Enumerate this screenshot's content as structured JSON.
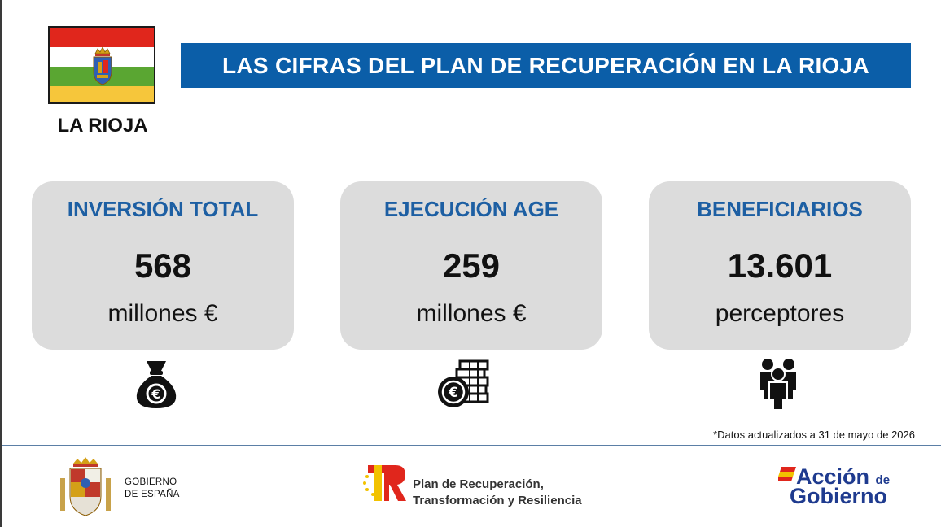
{
  "region": {
    "name": "LA RIOJA"
  },
  "banner": {
    "title": "LAS CIFRAS DEL PLAN DE RECUPERACIÓN EN LA RIOJA"
  },
  "cards": [
    {
      "title": "INVERSIÓN TOTAL",
      "value": "568",
      "unit": "millones €",
      "icon": "money-bag-icon"
    },
    {
      "title": "EJECUCIÓN AGE",
      "value": "259",
      "unit": "millones €",
      "icon": "coins-stack-icon"
    },
    {
      "title": "BENEFICIARIOS",
      "value": "13.601",
      "unit": "perceptores",
      "icon": "people-group-icon"
    }
  ],
  "footnote": "*Datos actualizados a 31 de mayo de 2026",
  "footer": {
    "gobierno": {
      "line1": "GOBIERNO",
      "line2": "DE ESPAÑA"
    },
    "plan": {
      "line1": "Plan de Recuperación,",
      "line2": "Transformación y Resiliencia"
    },
    "accion": {
      "word1": "Acción",
      "word2": "de",
      "word3": "Gobierno"
    }
  },
  "colors": {
    "banner": "#0b5ea8",
    "card_bg": "#dcdcdc",
    "card_title": "#1d5fa3",
    "flag_red": "#e0261c",
    "flag_white": "#ffffff",
    "flag_green": "#5aa632",
    "flag_yellow": "#f6c63b"
  }
}
